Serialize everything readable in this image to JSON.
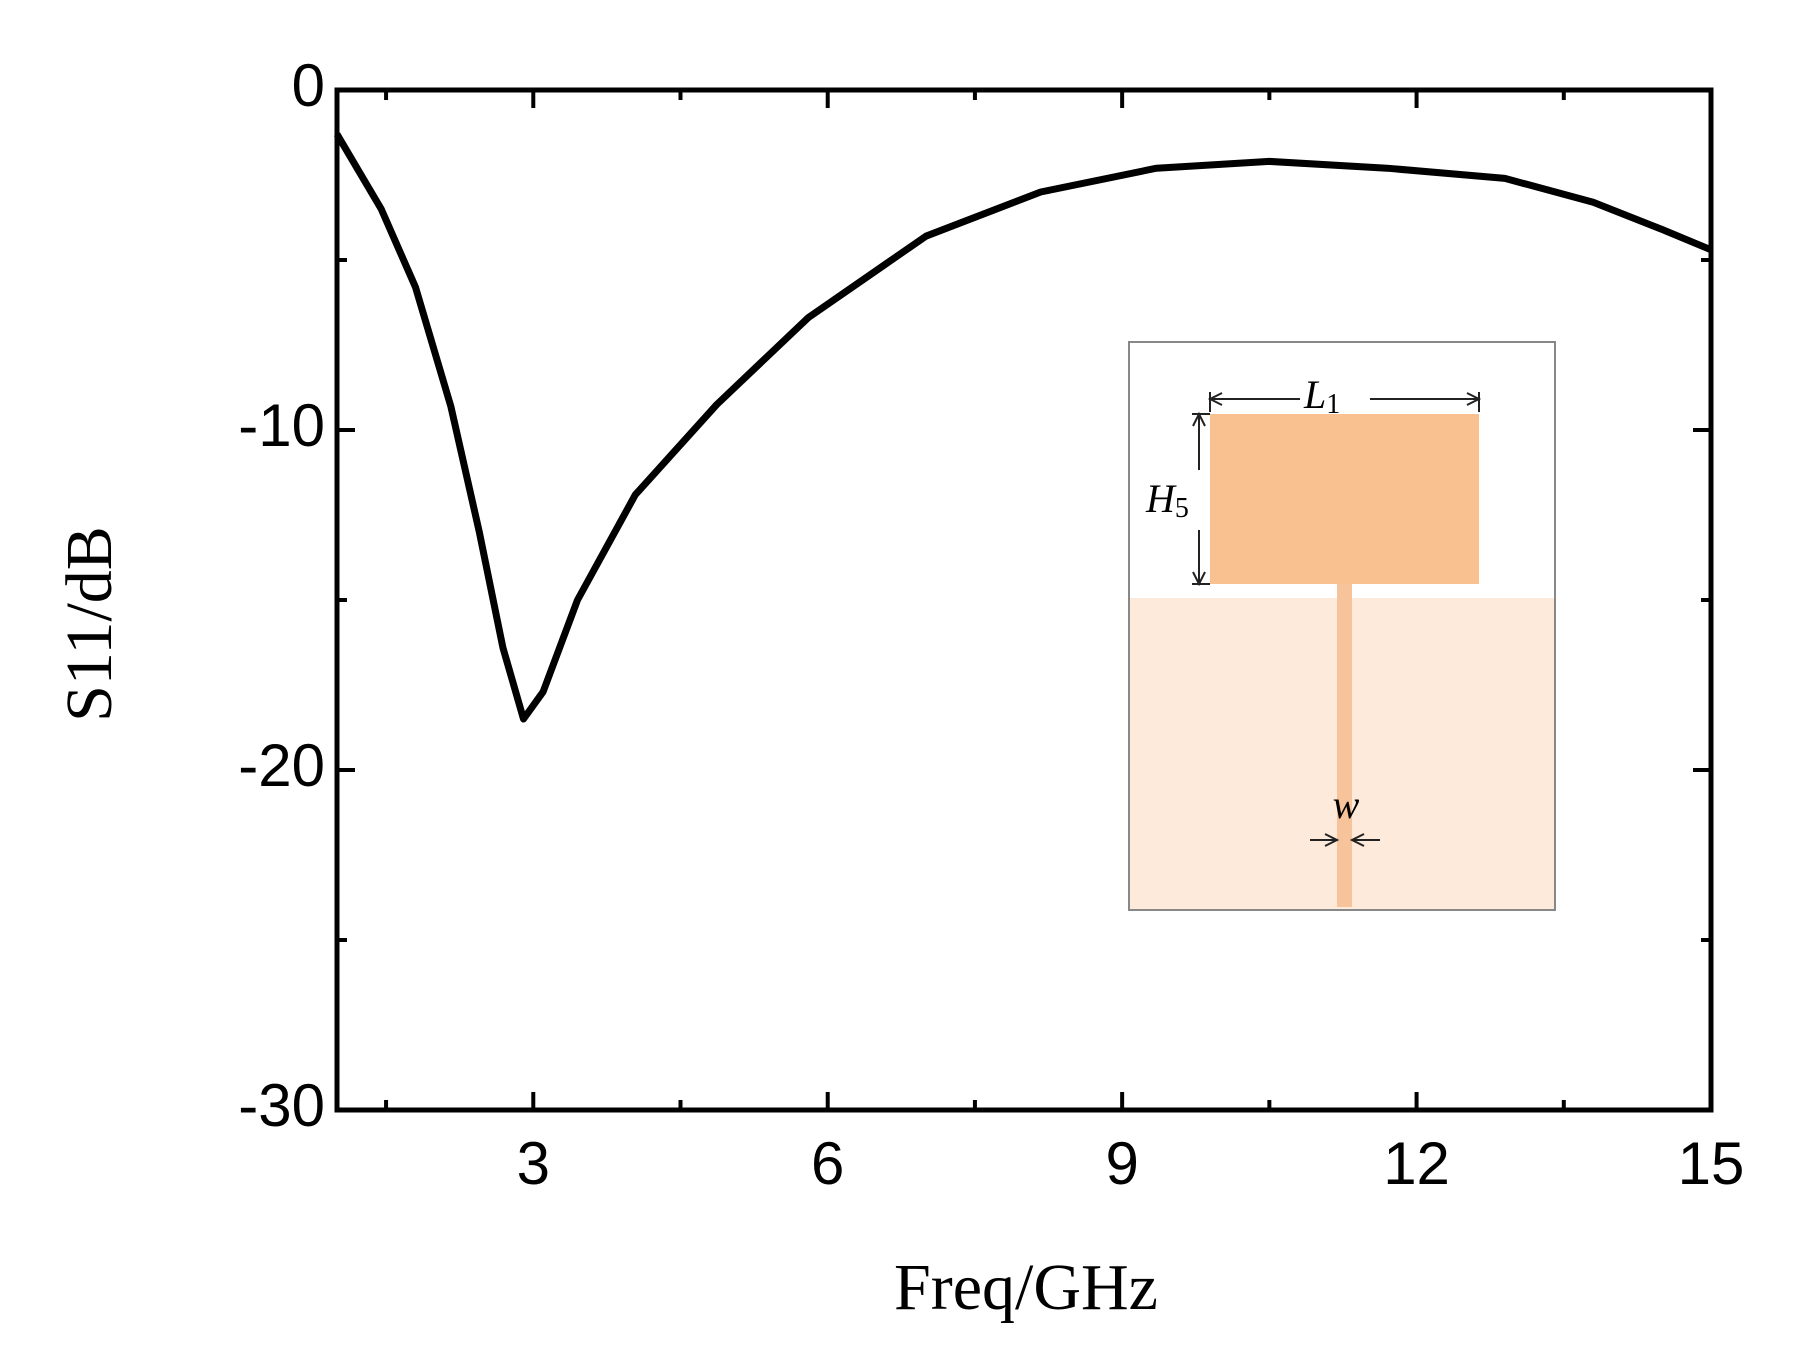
{
  "chart_data": {
    "type": "line",
    "x_label": "Freq/GHz",
    "y_label": "S11/dB",
    "xlim": [
      1,
      15
    ],
    "ylim": [
      -30,
      0
    ],
    "xticks": [
      3,
      6,
      9,
      12,
      15
    ],
    "yticks": [
      -30,
      -20,
      -10,
      0
    ],
    "xminorticks": [
      1.5,
      4.5,
      7.5,
      10.5,
      13.5
    ],
    "yminorticks": [
      -25,
      -15,
      -5
    ],
    "series": [
      {
        "color": "#000000",
        "x": [
          1,
          1.45,
          1.8,
          2.16,
          2.45,
          2.69,
          2.9,
          3.1,
          3.45,
          4.04,
          4.87,
          5.8,
          7,
          8.17,
          9.35,
          10.5,
          11.7,
          12.9,
          13.8,
          14.5,
          15
        ],
        "values": [
          -1.3,
          -3.5,
          -5.8,
          -9.3,
          -13,
          -16.4,
          -18.5,
          -17.7,
          -15,
          -11.9,
          -9.25,
          -6.7,
          -4.3,
          -3,
          -2.3,
          -2.1,
          -2.3,
          -2.6,
          -3.3,
          -4.1,
          -4.7
        ]
      }
    ]
  },
  "inset": {
    "labels": [
      {
        "main": "L",
        "sub": "1"
      },
      {
        "main": "H",
        "sub": "5"
      },
      {
        "main": "w"
      }
    ]
  }
}
